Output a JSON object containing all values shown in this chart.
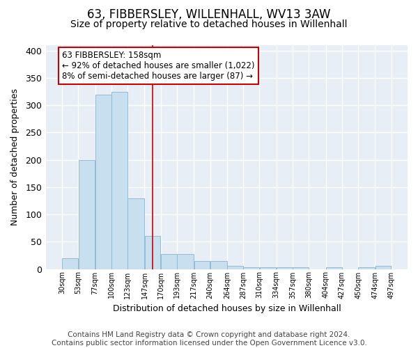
{
  "title1": "63, FIBBERSLEY, WILLENHALL, WV13 3AW",
  "title2": "Size of property relative to detached houses in Willenhall",
  "xlabel": "Distribution of detached houses by size in Willenhall",
  "ylabel": "Number of detached properties",
  "bar_left_edges": [
    30,
    53,
    77,
    100,
    123,
    147,
    170,
    193,
    217,
    240,
    264,
    287,
    310,
    334,
    357,
    380,
    404,
    427,
    450,
    474
  ],
  "bar_widths": [
    23,
    24,
    23,
    23,
    24,
    23,
    23,
    24,
    23,
    24,
    23,
    23,
    24,
    23,
    23,
    24,
    23,
    23,
    24,
    23
  ],
  "bar_heights": [
    20,
    200,
    320,
    325,
    130,
    60,
    27,
    27,
    15,
    15,
    6,
    3,
    3,
    3,
    3,
    0,
    3,
    0,
    3,
    6
  ],
  "tick_labels": [
    "30sqm",
    "53sqm",
    "77sqm",
    "100sqm",
    "123sqm",
    "147sqm",
    "170sqm",
    "193sqm",
    "217sqm",
    "240sqm",
    "264sqm",
    "287sqm",
    "310sqm",
    "334sqm",
    "357sqm",
    "380sqm",
    "404sqm",
    "427sqm",
    "450sqm",
    "474sqm",
    "497sqm"
  ],
  "tick_positions": [
    30,
    53,
    77,
    100,
    123,
    147,
    170,
    193,
    217,
    240,
    264,
    287,
    310,
    334,
    357,
    380,
    404,
    427,
    450,
    474,
    497
  ],
  "bar_color": "#c8dff0",
  "bar_edge_color": "#92bcd4",
  "plot_bg_color": "#e8eef5",
  "fig_bg_color": "#ffffff",
  "grid_color": "#ffffff",
  "red_line_x": 158,
  "annotation_text": "63 FIBBERSLEY: 158sqm\n← 92% of detached houses are smaller (1,022)\n8% of semi-detached houses are larger (87) →",
  "annotation_box_color": "#ffffff",
  "annotation_box_edge_color": "#cc0000",
  "ylim": [
    0,
    410
  ],
  "xlim": [
    7,
    520
  ],
  "title1_fontsize": 12,
  "title2_fontsize": 10,
  "ann_fontsize": 8.5,
  "footer_text": "Contains HM Land Registry data © Crown copyright and database right 2024.\nContains public sector information licensed under the Open Government Licence v3.0.",
  "footer_fontsize": 7.5
}
